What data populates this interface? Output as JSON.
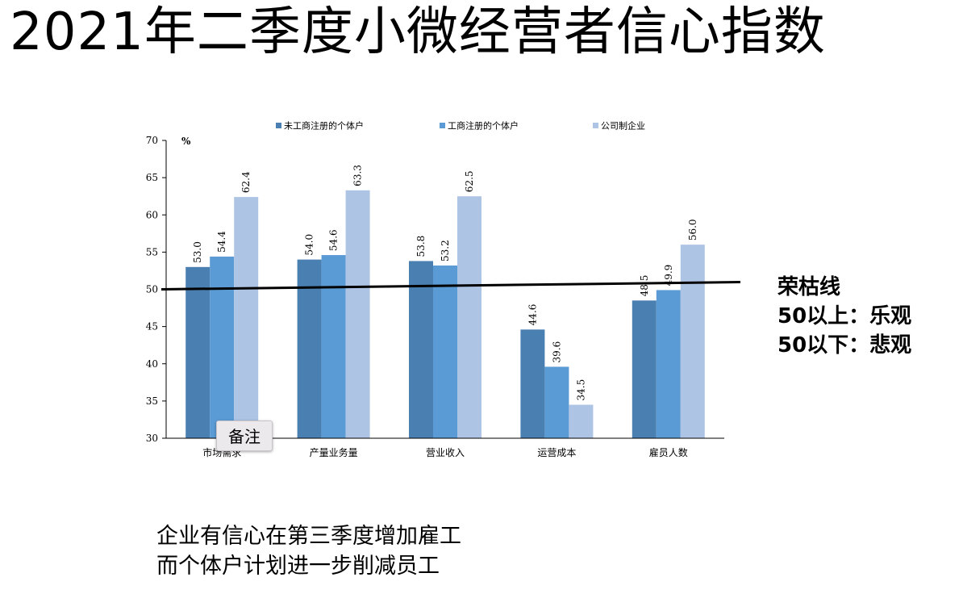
{
  "title": "2021年二季度小微经营者信心指数",
  "chart_data": {
    "type": "bar",
    "unit": "%",
    "categories": [
      "市场需求",
      "产量业务量",
      "营业收入",
      "运营成本",
      "雇员人数"
    ],
    "series": [
      {
        "name": "未工商注册的个体户",
        "color": "#4a7fb1",
        "values": [
          53.0,
          54.0,
          53.8,
          44.6,
          48.5
        ],
        "labels": [
          "53.0",
          "54.0",
          "53.8",
          "44.6",
          "48.5"
        ]
      },
      {
        "name": "工商注册的个体户",
        "color": "#5b9bd5",
        "values": [
          54.4,
          54.6,
          53.2,
          39.6,
          49.9
        ],
        "labels": [
          "54.4",
          "54.6",
          "53.2",
          "39.6",
          "49.9"
        ]
      },
      {
        "name": "公司制企业",
        "color": "#aec4e5",
        "values": [
          62.4,
          63.3,
          62.5,
          34.5,
          56.0
        ],
        "labels": [
          "62.4",
          "63.3",
          "62.5",
          "34.5",
          "56.0"
        ]
      }
    ],
    "ylim": [
      30,
      70
    ],
    "yticks": [
      "30",
      "35",
      "40",
      "45",
      "50",
      "55",
      "60",
      "65",
      "70"
    ],
    "grid": false,
    "legend": "top",
    "reference_line": 50
  },
  "side_note": {
    "lines": [
      "荣枯线",
      "50以上：乐观",
      "50以下：悲观"
    ]
  },
  "bottom_note": {
    "lines": [
      "企业有信心在第三季度增加雇工",
      "而个体户计划进一步削减员工"
    ]
  },
  "notes_button": {
    "label": "备注"
  }
}
